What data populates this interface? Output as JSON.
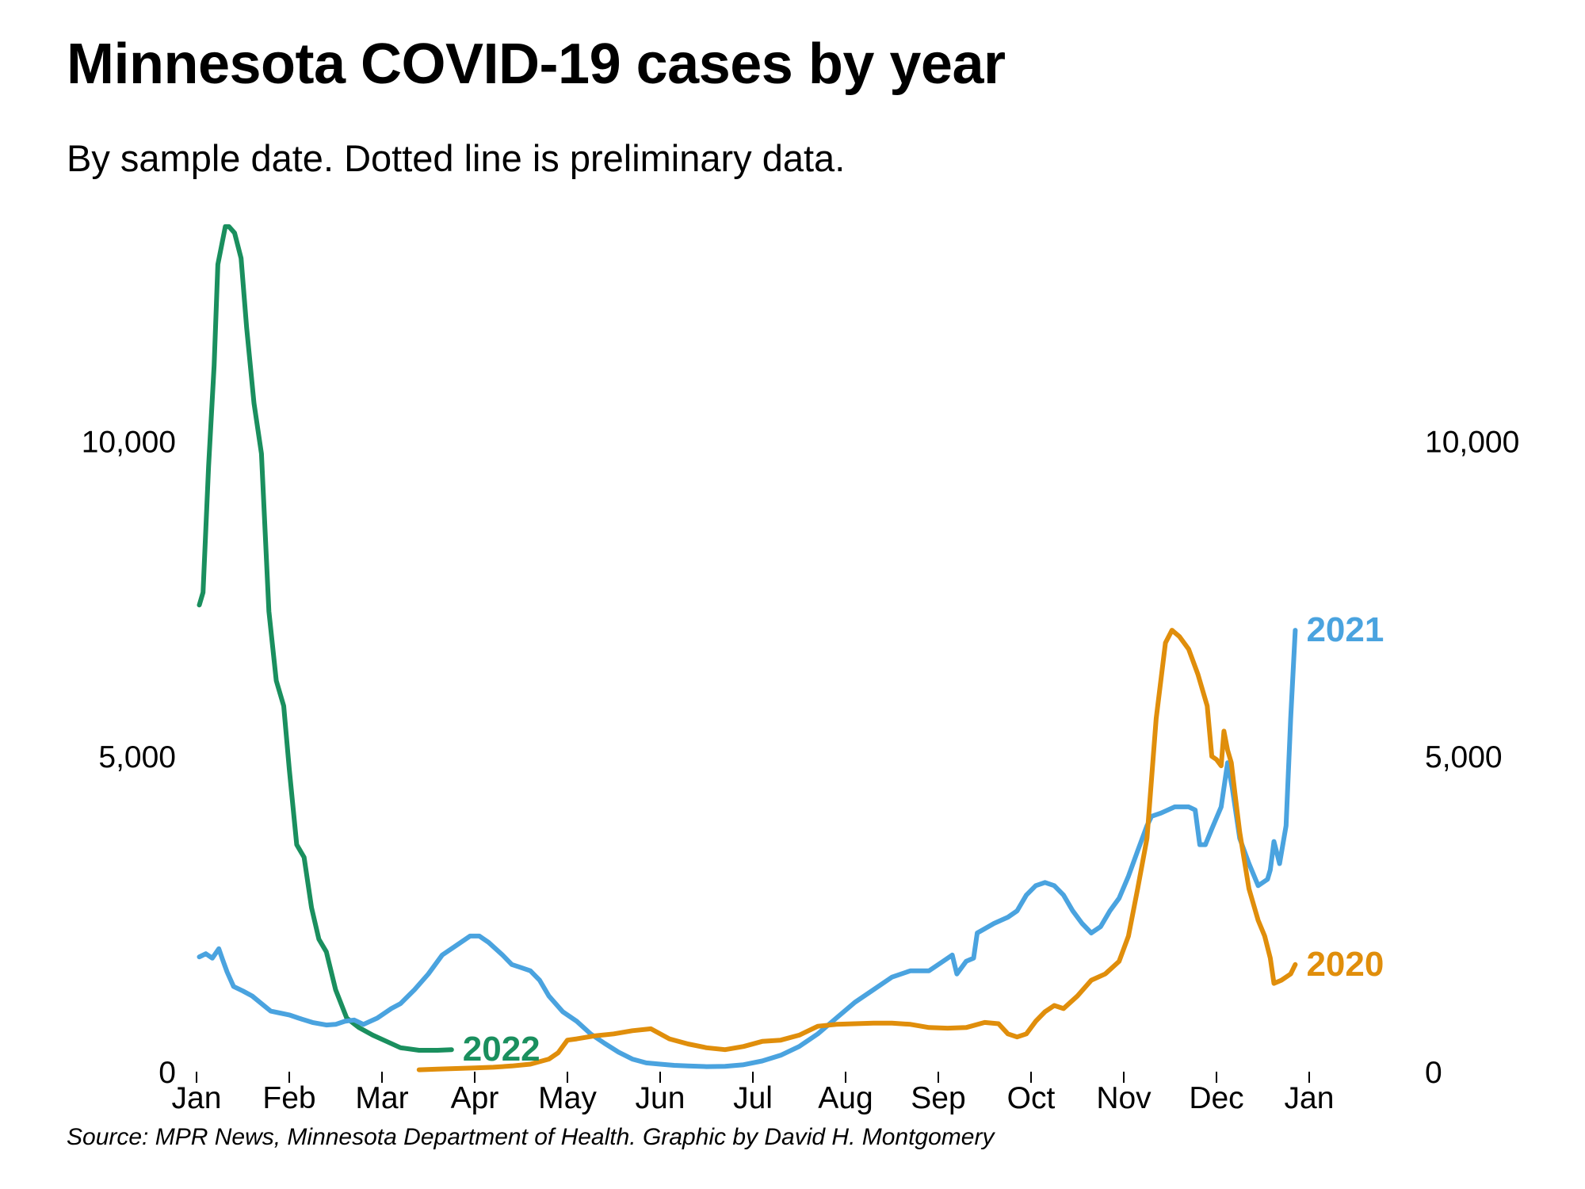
{
  "title": "Minnesota COVID-19 cases by year",
  "subtitle": "By sample date. Dotted line is preliminary data.",
  "source": "Source: MPR News, Minnesota Department of Health. Graphic by David H. Montgomery",
  "chart_data": {
    "type": "line",
    "x_unit": "month of year (0 = Jan 1, 12 = Jan 1 of next year)",
    "x_ticks": [
      "Jan",
      "Feb",
      "Mar",
      "Apr",
      "May",
      "Jun",
      "Jul",
      "Aug",
      "Sep",
      "Oct",
      "Nov",
      "Dec",
      "Jan"
    ],
    "xlim": [
      0,
      12
    ],
    "ylim": [
      0,
      13600
    ],
    "y_ticks": [
      {
        "value": 0,
        "label": "0"
      },
      {
        "value": 5000,
        "label": "5,000"
      },
      {
        "value": 10000,
        "label": "10,000"
      }
    ],
    "grid": false,
    "series": [
      {
        "name": "2022",
        "color": "#1a8f5e",
        "x": [
          0.03,
          0.07,
          0.13,
          0.19,
          0.23,
          0.27,
          0.31,
          0.35,
          0.41,
          0.48,
          0.54,
          0.62,
          0.7,
          0.78,
          0.86,
          0.94,
          1.0,
          1.08,
          1.16,
          1.24,
          1.32,
          1.4,
          1.5,
          1.62,
          1.75,
          1.9,
          2.05,
          2.2,
          2.4,
          2.6,
          2.75
        ],
        "y": [
          7400,
          7600,
          9600,
          11200,
          12800,
          13100,
          13400,
          13400,
          13300,
          12900,
          11800,
          10600,
          9800,
          7300,
          6200,
          5800,
          4800,
          3600,
          3400,
          2600,
          2100,
          1900,
          1300,
          850,
          700,
          580,
          480,
          380,
          340,
          340,
          350
        ]
      },
      {
        "name": "2021",
        "color": "#4aa3df",
        "x": [
          0.03,
          0.1,
          0.17,
          0.24,
          0.28,
          0.33,
          0.4,
          0.5,
          0.6,
          0.7,
          0.8,
          0.9,
          1.0,
          1.1,
          1.25,
          1.4,
          1.5,
          1.6,
          1.7,
          1.8,
          1.95,
          2.1,
          2.2,
          2.35,
          2.5,
          2.65,
          2.8,
          2.95,
          3.05,
          3.15,
          3.3,
          3.4,
          3.5,
          3.6,
          3.7,
          3.8,
          3.95,
          4.1,
          4.25,
          4.4,
          4.55,
          4.7,
          4.85,
          5.0,
          5.15,
          5.3,
          5.5,
          5.7,
          5.9,
          6.1,
          6.3,
          6.5,
          6.7,
          6.9,
          7.1,
          7.3,
          7.5,
          7.7,
          7.9,
          8.05,
          8.15,
          8.2,
          8.3,
          8.38,
          8.42,
          8.48,
          8.6,
          8.75,
          8.85,
          8.95,
          9.05,
          9.15,
          9.25,
          9.35,
          9.45,
          9.55,
          9.65,
          9.75,
          9.85,
          9.95,
          10.05,
          10.15,
          10.25,
          10.3,
          10.4,
          10.55,
          10.7,
          10.77,
          10.82,
          10.88,
          10.95,
          11.05,
          11.12,
          11.17,
          11.25,
          11.35,
          11.45,
          11.5,
          11.55,
          11.58,
          11.62,
          11.68,
          11.75,
          11.8,
          11.85
        ],
        "y": [
          1820,
          1870,
          1800,
          1950,
          1780,
          1580,
          1350,
          1280,
          1200,
          1080,
          960,
          930,
          900,
          850,
          780,
          740,
          750,
          800,
          820,
          750,
          850,
          1000,
          1080,
          1300,
          1550,
          1850,
          2000,
          2150,
          2150,
          2050,
          1850,
          1700,
          1650,
          1600,
          1450,
          1200,
          950,
          800,
          600,
          450,
          310,
          200,
          140,
          120,
          100,
          90,
          80,
          85,
          110,
          170,
          260,
          400,
          600,
          850,
          1100,
          1300,
          1500,
          1600,
          1600,
          1750,
          1850,
          1550,
          1750,
          1800,
          2200,
          2250,
          2350,
          2450,
          2550,
          2800,
          2950,
          3000,
          2950,
          2800,
          2550,
          2350,
          2200,
          2300,
          2550,
          2750,
          3100,
          3500,
          3900,
          4050,
          4100,
          4200,
          4200,
          4150,
          3600,
          3600,
          3850,
          4200,
          4900,
          4500,
          3700,
          3300,
          2950,
          3000,
          3050,
          3200,
          3650,
          3300,
          3900,
          5600,
          7000
        ]
      },
      {
        "name": "2020",
        "color": "#e08e0b",
        "x": [
          2.4,
          2.6,
          2.8,
          3.0,
          3.2,
          3.4,
          3.6,
          3.8,
          3.9,
          4.0,
          4.1,
          4.3,
          4.5,
          4.7,
          4.9,
          5.1,
          5.3,
          5.5,
          5.7,
          5.9,
          6.1,
          6.3,
          6.5,
          6.7,
          6.9,
          7.1,
          7.3,
          7.5,
          7.7,
          7.9,
          8.1,
          8.3,
          8.5,
          8.65,
          8.75,
          8.85,
          8.95,
          9.05,
          9.15,
          9.25,
          9.35,
          9.5,
          9.65,
          9.8,
          9.95,
          10.05,
          10.15,
          10.25,
          10.35,
          10.45,
          10.52,
          10.6,
          10.7,
          10.8,
          10.9,
          10.95,
          11.0,
          11.05,
          11.08,
          11.12,
          11.16,
          11.2,
          11.25,
          11.35,
          11.45,
          11.52,
          11.58,
          11.62,
          11.7,
          11.8,
          11.85
        ],
        "y": [
          30,
          40,
          50,
          60,
          70,
          90,
          120,
          200,
          300,
          500,
          520,
          570,
          600,
          650,
          680,
          520,
          440,
          380,
          350,
          400,
          480,
          500,
          580,
          720,
          750,
          760,
          770,
          770,
          750,
          700,
          690,
          700,
          780,
          760,
          600,
          550,
          600,
          800,
          950,
          1050,
          1000,
          1200,
          1450,
          1550,
          1750,
          2150,
          2900,
          3700,
          5600,
          6800,
          7000,
          6900,
          6700,
          6300,
          5800,
          5000,
          4950,
          4850,
          5400,
          5100,
          4900,
          4400,
          3800,
          2900,
          2400,
          2150,
          1800,
          1400,
          1450,
          1550,
          1700
        ]
      }
    ]
  }
}
